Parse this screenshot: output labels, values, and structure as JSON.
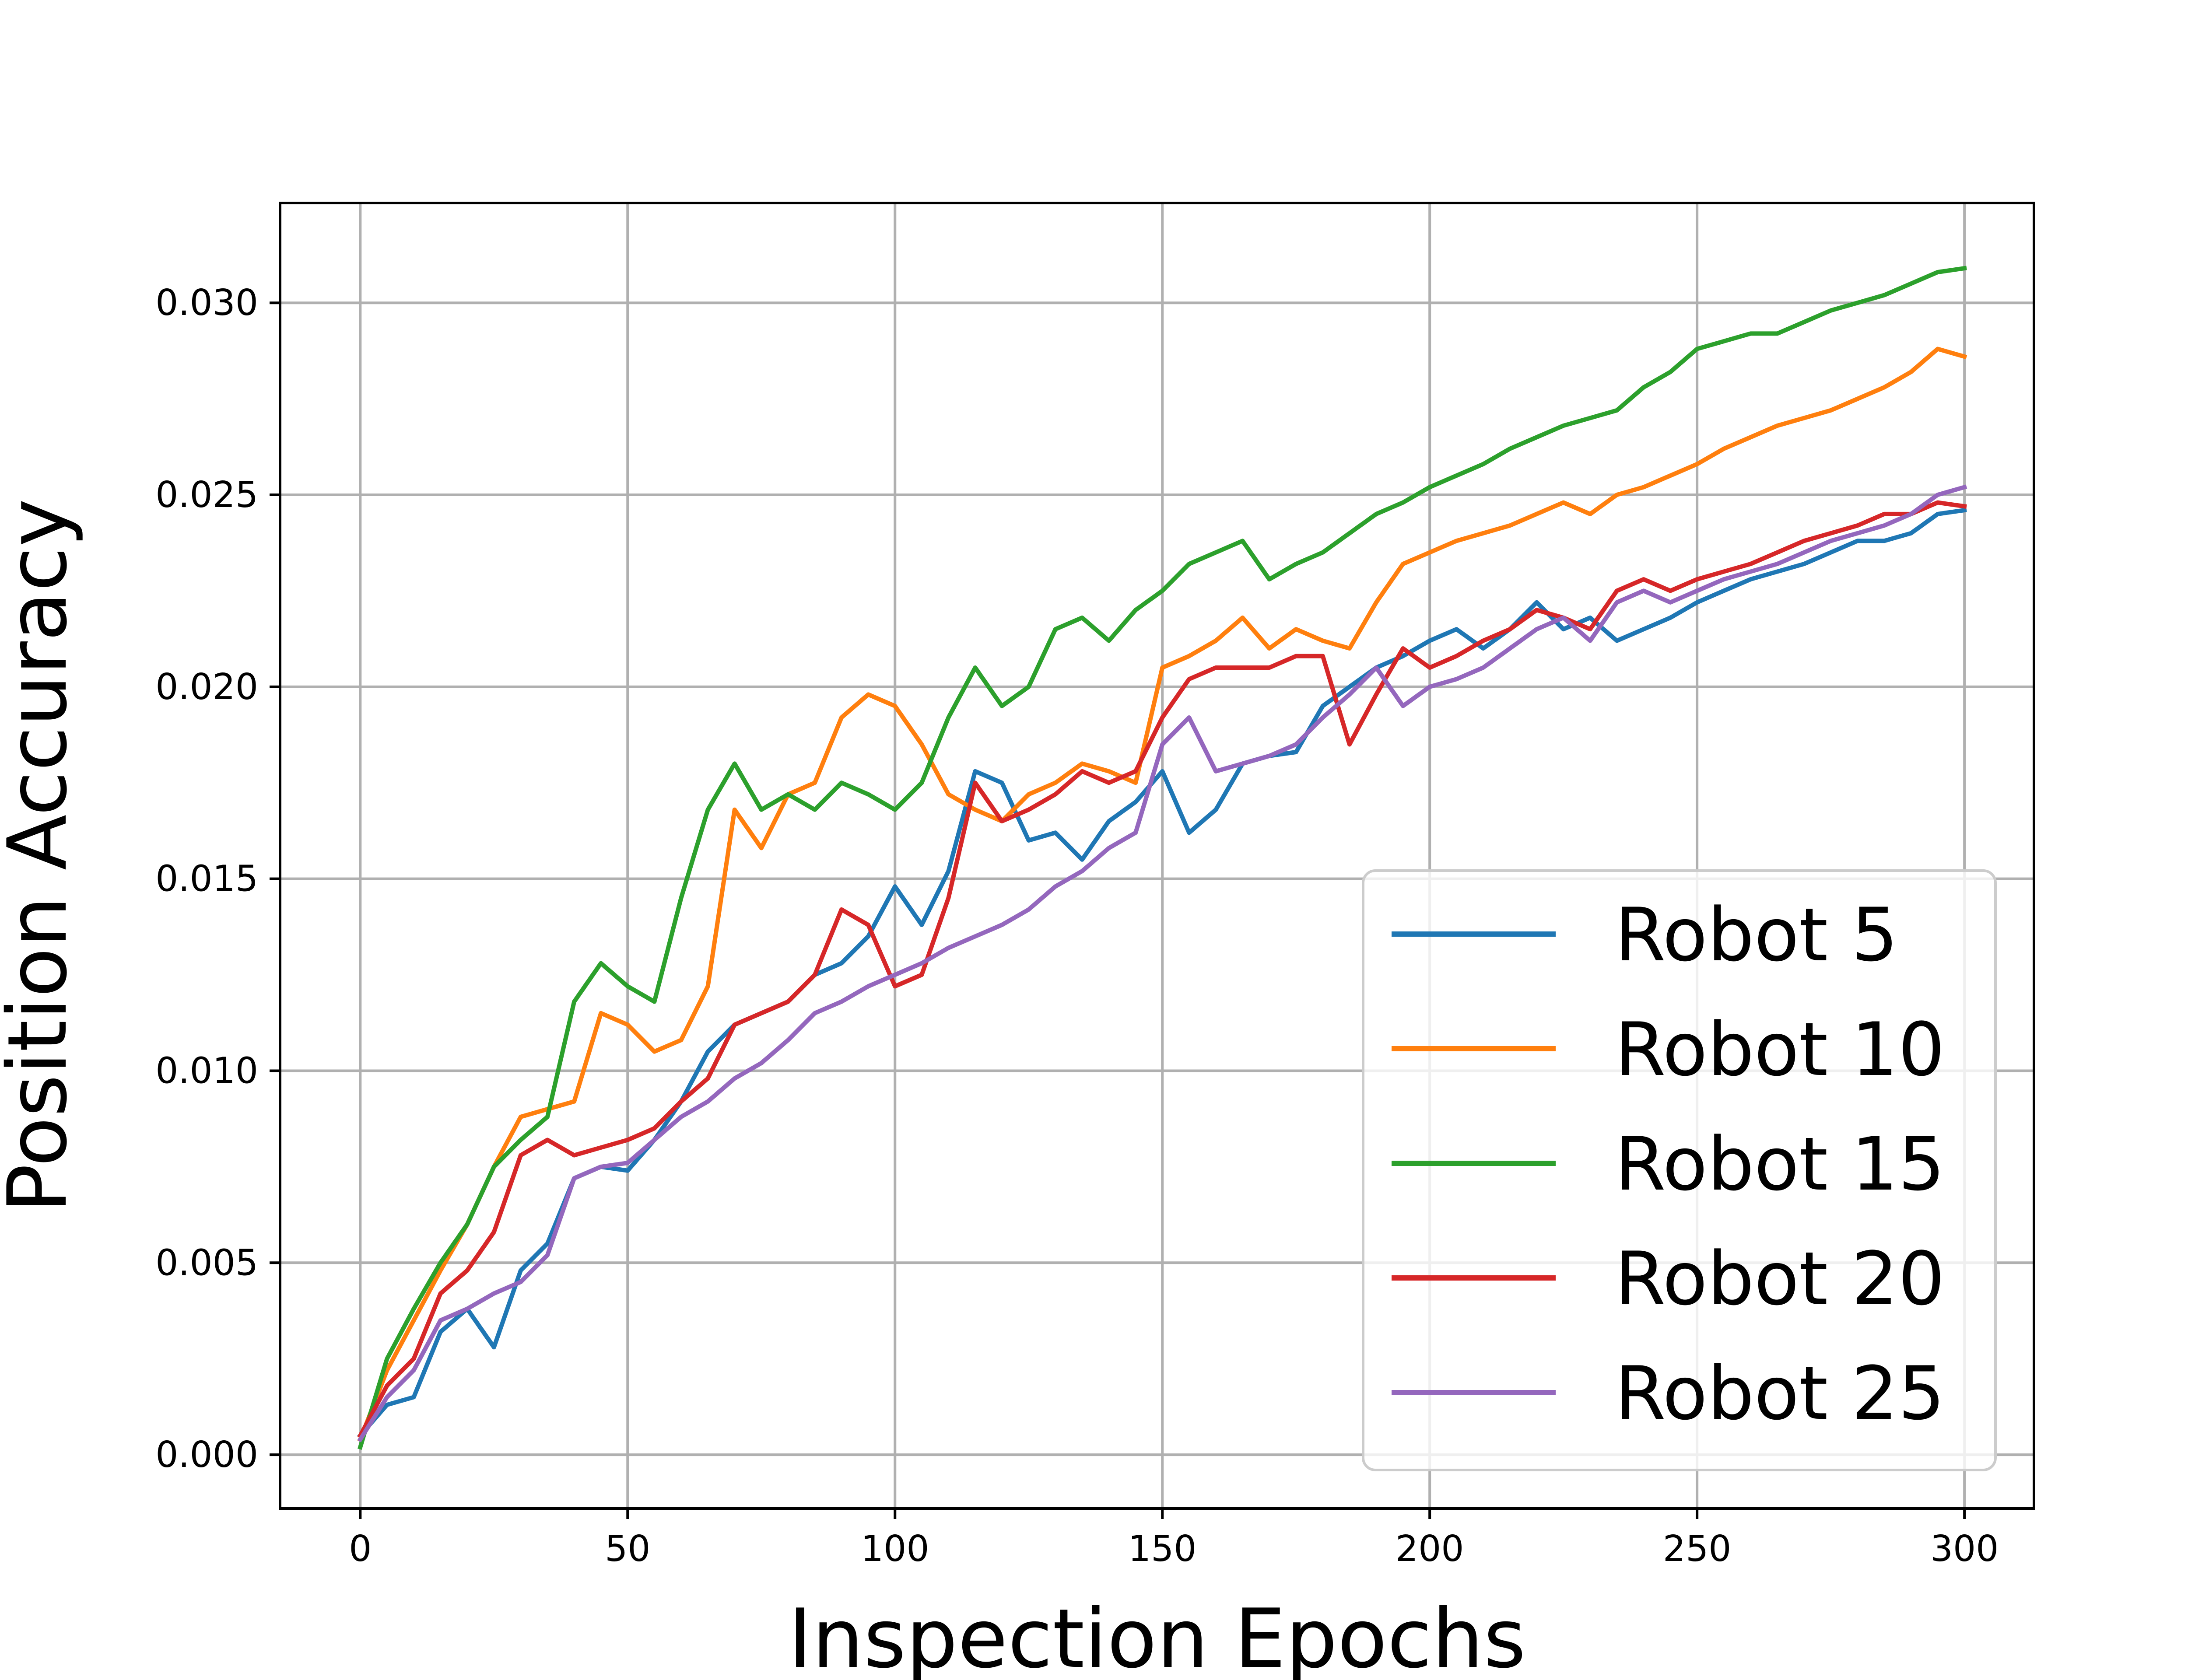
{
  "chart_data": {
    "type": "line",
    "title": "",
    "xlabel": "Inspection Epochs",
    "ylabel": "Position Accuracy",
    "xlim": [
      -15,
      313
    ],
    "ylim": [
      -0.0014,
      0.0326
    ],
    "xticks": [
      0,
      50,
      100,
      150,
      200,
      250,
      300
    ],
    "yticks": [
      0.0,
      0.005,
      0.01,
      0.015,
      0.02,
      0.025,
      0.03
    ],
    "xtick_labels": [
      "0",
      "50",
      "100",
      "150",
      "200",
      "250",
      "300"
    ],
    "ytick_labels": [
      "0.000",
      "0.005",
      "0.010",
      "0.015",
      "0.020",
      "0.025",
      "0.030"
    ],
    "grid": true,
    "legend": "lower-right",
    "series": [
      {
        "name": "Robot 5",
        "color": "#1f77b4",
        "x": [
          0,
          5,
          10,
          15,
          20,
          25,
          30,
          35,
          40,
          45,
          50,
          55,
          60,
          65,
          70,
          75,
          80,
          85,
          90,
          95,
          100,
          105,
          110,
          115,
          120,
          125,
          130,
          135,
          140,
          145,
          150,
          155,
          160,
          165,
          170,
          175,
          180,
          185,
          190,
          195,
          200,
          205,
          210,
          215,
          220,
          225,
          230,
          235,
          240,
          245,
          250,
          255,
          260,
          265,
          270,
          275,
          280,
          285,
          290,
          295,
          300
        ],
        "y": [
          0.0005,
          0.0013,
          0.0015,
          0.0032,
          0.0038,
          0.0028,
          0.0048,
          0.0055,
          0.0072,
          0.0075,
          0.0074,
          0.0082,
          0.0092,
          0.0105,
          0.0112,
          0.0115,
          0.0118,
          0.0125,
          0.0128,
          0.0135,
          0.0148,
          0.0138,
          0.0152,
          0.0178,
          0.0175,
          0.016,
          0.0162,
          0.0155,
          0.0165,
          0.017,
          0.0178,
          0.0162,
          0.0168,
          0.018,
          0.0182,
          0.0183,
          0.0195,
          0.02,
          0.0205,
          0.0208,
          0.0212,
          0.0215,
          0.021,
          0.0215,
          0.0222,
          0.0215,
          0.0218,
          0.0212,
          0.0215,
          0.0218,
          0.0222,
          0.0225,
          0.0228,
          0.023,
          0.0232,
          0.0235,
          0.0238,
          0.0238,
          0.024,
          0.0245,
          0.0246
        ]
      },
      {
        "name": "Robot 10",
        "color": "#ff7f0e",
        "x": [
          0,
          5,
          10,
          15,
          20,
          25,
          30,
          35,
          40,
          45,
          50,
          55,
          60,
          65,
          70,
          75,
          80,
          85,
          90,
          95,
          100,
          105,
          110,
          115,
          120,
          125,
          130,
          135,
          140,
          145,
          150,
          155,
          160,
          165,
          170,
          175,
          180,
          185,
          190,
          195,
          200,
          205,
          210,
          215,
          220,
          225,
          230,
          235,
          240,
          245,
          250,
          255,
          260,
          265,
          270,
          275,
          280,
          285,
          290,
          295,
          300
        ],
        "y": [
          0.0004,
          0.0022,
          0.0035,
          0.0048,
          0.006,
          0.0075,
          0.0088,
          0.009,
          0.0092,
          0.0115,
          0.0112,
          0.0105,
          0.0108,
          0.0122,
          0.0168,
          0.0158,
          0.0172,
          0.0175,
          0.0192,
          0.0198,
          0.0195,
          0.0185,
          0.0172,
          0.0168,
          0.0165,
          0.0172,
          0.0175,
          0.018,
          0.0178,
          0.0175,
          0.0205,
          0.0208,
          0.0212,
          0.0218,
          0.021,
          0.0215,
          0.0212,
          0.021,
          0.0222,
          0.0232,
          0.0235,
          0.0238,
          0.024,
          0.0242,
          0.0245,
          0.0248,
          0.0245,
          0.025,
          0.0252,
          0.0255,
          0.0258,
          0.0262,
          0.0265,
          0.0268,
          0.027,
          0.0272,
          0.0275,
          0.0278,
          0.0282,
          0.0288,
          0.0286
        ]
      },
      {
        "name": "Robot 15",
        "color": "#2ca02c",
        "x": [
          0,
          5,
          10,
          15,
          20,
          25,
          30,
          35,
          40,
          45,
          50,
          55,
          60,
          65,
          70,
          75,
          80,
          85,
          90,
          95,
          100,
          105,
          110,
          115,
          120,
          125,
          130,
          135,
          140,
          145,
          150,
          155,
          160,
          165,
          170,
          175,
          180,
          185,
          190,
          195,
          200,
          205,
          210,
          215,
          220,
          225,
          230,
          235,
          240,
          245,
          250,
          255,
          260,
          265,
          270,
          275,
          280,
          285,
          290,
          295,
          300
        ],
        "y": [
          0.0002,
          0.0025,
          0.0038,
          0.005,
          0.006,
          0.0075,
          0.0082,
          0.0088,
          0.0118,
          0.0128,
          0.0122,
          0.0118,
          0.0145,
          0.0168,
          0.018,
          0.0168,
          0.0172,
          0.0168,
          0.0175,
          0.0172,
          0.0168,
          0.0175,
          0.0192,
          0.0205,
          0.0195,
          0.02,
          0.0215,
          0.0218,
          0.0212,
          0.022,
          0.0225,
          0.0232,
          0.0235,
          0.0238,
          0.0228,
          0.0232,
          0.0235,
          0.024,
          0.0245,
          0.0248,
          0.0252,
          0.0255,
          0.0258,
          0.0262,
          0.0265,
          0.0268,
          0.027,
          0.0272,
          0.0278,
          0.0282,
          0.0288,
          0.029,
          0.0292,
          0.0292,
          0.0295,
          0.0298,
          0.03,
          0.0302,
          0.0305,
          0.0308,
          0.0309
        ]
      },
      {
        "name": "Robot 20",
        "color": "#d62728",
        "x": [
          0,
          5,
          10,
          15,
          20,
          25,
          30,
          35,
          40,
          45,
          50,
          55,
          60,
          65,
          70,
          75,
          80,
          85,
          90,
          95,
          100,
          105,
          110,
          115,
          120,
          125,
          130,
          135,
          140,
          145,
          150,
          155,
          160,
          165,
          170,
          175,
          180,
          185,
          190,
          195,
          200,
          205,
          210,
          215,
          220,
          225,
          230,
          235,
          240,
          245,
          250,
          255,
          260,
          265,
          270,
          275,
          280,
          285,
          290,
          295,
          300
        ],
        "y": [
          0.0005,
          0.0018,
          0.0025,
          0.0042,
          0.0048,
          0.0058,
          0.0078,
          0.0082,
          0.0078,
          0.008,
          0.0082,
          0.0085,
          0.0092,
          0.0098,
          0.0112,
          0.0115,
          0.0118,
          0.0125,
          0.0142,
          0.0138,
          0.0122,
          0.0125,
          0.0145,
          0.0175,
          0.0165,
          0.0168,
          0.0172,
          0.0178,
          0.0175,
          0.0178,
          0.0192,
          0.0202,
          0.0205,
          0.0205,
          0.0205,
          0.0208,
          0.0208,
          0.0185,
          0.0198,
          0.021,
          0.0205,
          0.0208,
          0.0212,
          0.0215,
          0.022,
          0.0218,
          0.0215,
          0.0225,
          0.0228,
          0.0225,
          0.0228,
          0.023,
          0.0232,
          0.0235,
          0.0238,
          0.024,
          0.0242,
          0.0245,
          0.0245,
          0.0248,
          0.0247
        ]
      },
      {
        "name": "Robot 25",
        "color": "#9467bd",
        "x": [
          0,
          5,
          10,
          15,
          20,
          25,
          30,
          35,
          40,
          45,
          50,
          55,
          60,
          65,
          70,
          75,
          80,
          85,
          90,
          95,
          100,
          105,
          110,
          115,
          120,
          125,
          130,
          135,
          140,
          145,
          150,
          155,
          160,
          165,
          170,
          175,
          180,
          185,
          190,
          195,
          200,
          205,
          210,
          215,
          220,
          225,
          230,
          235,
          240,
          245,
          250,
          255,
          260,
          265,
          270,
          275,
          280,
          285,
          290,
          295,
          300
        ],
        "y": [
          0.0004,
          0.0015,
          0.0022,
          0.0035,
          0.0038,
          0.0042,
          0.0045,
          0.0052,
          0.0072,
          0.0075,
          0.0076,
          0.0082,
          0.0088,
          0.0092,
          0.0098,
          0.0102,
          0.0108,
          0.0115,
          0.0118,
          0.0122,
          0.0125,
          0.0128,
          0.0132,
          0.0135,
          0.0138,
          0.0142,
          0.0148,
          0.0152,
          0.0158,
          0.0162,
          0.0185,
          0.0192,
          0.0178,
          0.018,
          0.0182,
          0.0185,
          0.0192,
          0.0198,
          0.0205,
          0.0195,
          0.02,
          0.0202,
          0.0205,
          0.021,
          0.0215,
          0.0218,
          0.0212,
          0.0222,
          0.0225,
          0.0222,
          0.0225,
          0.0228,
          0.023,
          0.0232,
          0.0235,
          0.0238,
          0.024,
          0.0242,
          0.0245,
          0.025,
          0.0252
        ]
      }
    ]
  }
}
